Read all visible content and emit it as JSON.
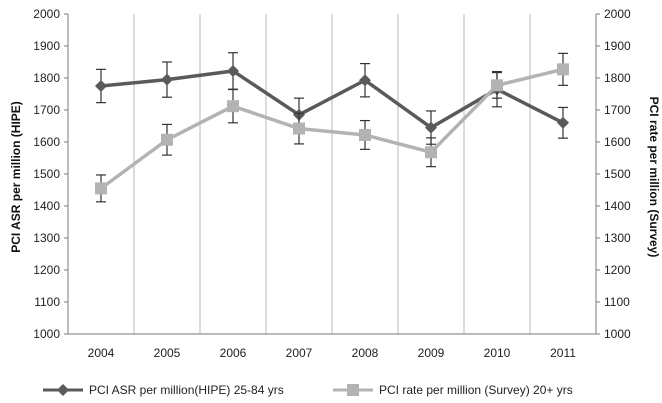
{
  "chart_data": {
    "type": "line",
    "categories": [
      "2004",
      "2005",
      "2006",
      "2007",
      "2008",
      "2009",
      "2010",
      "2011"
    ],
    "ylabel_left": "PCI ASR per million (HIPE)",
    "ylabel_right": "PCI rate per million (Survey)",
    "ylim": [
      1000,
      2000
    ],
    "yticks": [
      1000,
      1100,
      1200,
      1300,
      1400,
      1500,
      1600,
      1700,
      1800,
      1900,
      2000
    ],
    "grid": "vertical",
    "legend_position": "bottom",
    "series": [
      {
        "name": "PCI ASR per million(HIPE) 25-84 yrs",
        "axis": "left",
        "color": "#5a5a5a",
        "marker": "diamond",
        "values": [
          1775,
          1795,
          1822,
          1685,
          1793,
          1645,
          1765,
          1660
        ],
        "error": [
          52,
          55,
          57,
          52,
          52,
          52,
          55,
          48
        ]
      },
      {
        "name": "PCI rate per million (Survey) 20+ yrs",
        "axis": "right",
        "color": "#b3b3b3",
        "marker": "square",
        "values": [
          1455,
          1607,
          1712,
          1642,
          1622,
          1568,
          1777,
          1827
        ],
        "error": [
          42,
          48,
          52,
          48,
          45,
          45,
          40,
          50
        ]
      }
    ]
  }
}
